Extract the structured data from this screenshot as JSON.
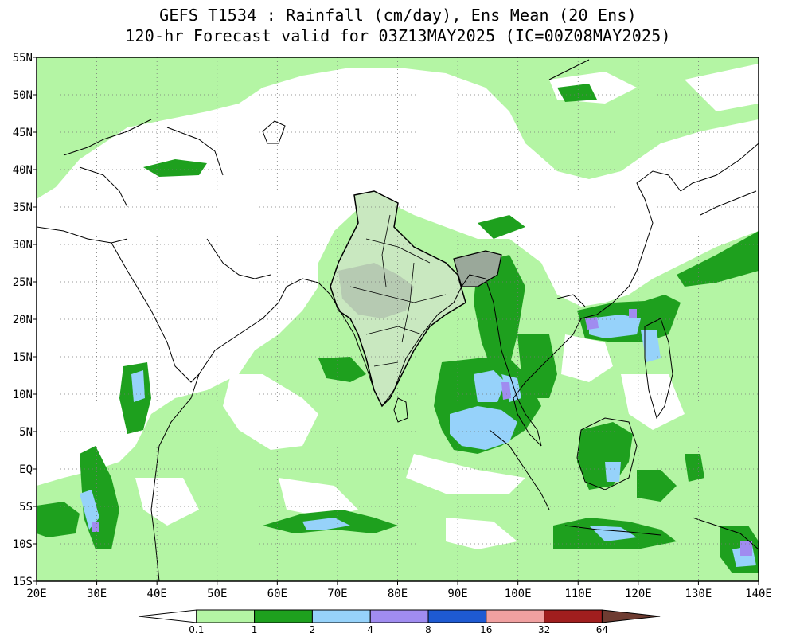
{
  "title_line1": "GEFS T1534 : Rainfall (cm/day), Ens Mean (20 Ens)",
  "title_line2": "120-hr Forecast valid for 03Z13MAY2025 (IC=00Z08MAY2025)",
  "map": {
    "lon_range": [
      20,
      140
    ],
    "lat_range": [
      -15,
      55
    ],
    "lon_ticks": [
      "20E",
      "30E",
      "40E",
      "50E",
      "60E",
      "70E",
      "80E",
      "90E",
      "100E",
      "110E",
      "120E",
      "130E",
      "140E"
    ],
    "lat_ticks": [
      "55N",
      "50N",
      "45N",
      "40N",
      "35N",
      "30N",
      "25N",
      "20N",
      "15N",
      "10N",
      "5N",
      "EQ",
      "5S",
      "10S",
      "15S"
    ],
    "grid": "dotted"
  },
  "colorbar": {
    "labels": [
      "0.1",
      "1",
      "2",
      "4",
      "8",
      "16",
      "32",
      "64"
    ],
    "colors": [
      "#ffffff",
      "#b4f5a4",
      "#1ea01e",
      "#96d2fa",
      "#a08cf0",
      "#1e5ad2",
      "#f0a0a0",
      "#a01e1e",
      "#6e3c32"
    ]
  }
}
